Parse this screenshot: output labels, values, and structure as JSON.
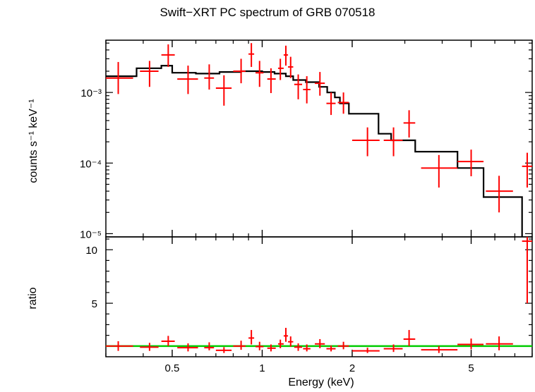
{
  "chart_data": [
    {
      "panel": "spectrum",
      "type": "scatter",
      "title": "Swift−XRT PC spectrum of GRB 070518",
      "xlabel": "",
      "ylabel": "counts s⁻¹ keV⁻¹",
      "xscale": "log",
      "yscale": "log",
      "xlim": [
        0.3,
        8.0
      ],
      "ylim": [
        9e-06,
        0.0055
      ],
      "y_ticks": [
        {
          "value": 0.001,
          "label": "10⁻³"
        },
        {
          "value": 0.0001,
          "label": "10⁻⁴"
        },
        {
          "value": 1e-05,
          "label": "10⁻⁵"
        }
      ],
      "data": [
        {
          "x": 0.33,
          "xlo": 0.3,
          "xhi": 0.37,
          "y": 0.0016,
          "ylo": 0.00095,
          "yhi": 0.0027
        },
        {
          "x": 0.42,
          "xlo": 0.39,
          "xhi": 0.45,
          "y": 0.002,
          "ylo": 0.0012,
          "yhi": 0.0028
        },
        {
          "x": 0.485,
          "xlo": 0.46,
          "xhi": 0.51,
          "y": 0.0034,
          "ylo": 0.0023,
          "yhi": 0.0048
        },
        {
          "x": 0.565,
          "xlo": 0.52,
          "xhi": 0.61,
          "y": 0.00155,
          "ylo": 0.00095,
          "yhi": 0.0024
        },
        {
          "x": 0.665,
          "xlo": 0.64,
          "xhi": 0.69,
          "y": 0.0016,
          "ylo": 0.0011,
          "yhi": 0.0025
        },
        {
          "x": 0.745,
          "xlo": 0.7,
          "xhi": 0.79,
          "y": 0.00115,
          "ylo": 0.00065,
          "yhi": 0.00175
        },
        {
          "x": 0.85,
          "xlo": 0.8,
          "xhi": 0.88,
          "y": 0.002,
          "ylo": 0.00135,
          "yhi": 0.003
        },
        {
          "x": 0.92,
          "xlo": 0.9,
          "xhi": 0.94,
          "y": 0.0035,
          "ylo": 0.0023,
          "yhi": 0.005
        },
        {
          "x": 0.98,
          "xlo": 0.95,
          "xhi": 1.01,
          "y": 0.0019,
          "ylo": 0.0012,
          "yhi": 0.0028
        },
        {
          "x": 1.07,
          "xlo": 1.04,
          "xhi": 1.11,
          "y": 0.00155,
          "ylo": 0.00098,
          "yhi": 0.0022
        },
        {
          "x": 1.15,
          "xlo": 1.13,
          "xhi": 1.18,
          "y": 0.0022,
          "ylo": 0.0015,
          "yhi": 0.003
        },
        {
          "x": 1.2,
          "xlo": 1.18,
          "xhi": 1.22,
          "y": 0.0034,
          "ylo": 0.0024,
          "yhi": 0.0046
        },
        {
          "x": 1.245,
          "xlo": 1.22,
          "xhi": 1.27,
          "y": 0.0023,
          "ylo": 0.0016,
          "yhi": 0.0032
        },
        {
          "x": 1.32,
          "xlo": 1.28,
          "xhi": 1.36,
          "y": 0.0013,
          "ylo": 0.0008,
          "yhi": 0.0018
        },
        {
          "x": 1.41,
          "xlo": 1.37,
          "xhi": 1.45,
          "y": 0.0011,
          "ylo": 0.0007,
          "yhi": 0.0017
        },
        {
          "x": 1.56,
          "xlo": 1.5,
          "xhi": 1.62,
          "y": 0.00135,
          "ylo": 0.0009,
          "yhi": 0.00195
        },
        {
          "x": 1.7,
          "xlo": 1.64,
          "xhi": 1.76,
          "y": 0.0007,
          "ylo": 0.00048,
          "yhi": 0.001
        },
        {
          "x": 1.87,
          "xlo": 1.79,
          "xhi": 1.95,
          "y": 0.00072,
          "ylo": 0.0005,
          "yhi": 0.001
        },
        {
          "x": 2.25,
          "xlo": 2.0,
          "xhi": 2.47,
          "y": 0.00021,
          "ylo": 0.000125,
          "yhi": 0.00032
        },
        {
          "x": 2.75,
          "xlo": 2.55,
          "xhi": 2.95,
          "y": 0.00021,
          "ylo": 0.000125,
          "yhi": 0.00032
        },
        {
          "x": 3.1,
          "xlo": 2.97,
          "xhi": 3.25,
          "y": 0.00037,
          "ylo": 0.00023,
          "yhi": 0.00056
        },
        {
          "x": 3.9,
          "xlo": 3.4,
          "xhi": 4.5,
          "y": 8.5e-05,
          "ylo": 4.5e-05,
          "yhi": 0.00013
        },
        {
          "x": 5.0,
          "xlo": 4.5,
          "xhi": 5.5,
          "y": 0.000105,
          "ylo": 6.5e-05,
          "yhi": 0.000155
        },
        {
          "x": 6.2,
          "xlo": 5.6,
          "xhi": 6.9,
          "y": 4e-05,
          "ylo": 2e-05,
          "yhi": 6.6e-05
        },
        {
          "x": 7.7,
          "xlo": 7.4,
          "xhi": 8.0,
          "y": 9e-05,
          "ylo": 4.5e-05,
          "yhi": 0.00014
        }
      ],
      "model_steps": [
        [
          0.3,
          0.0017
        ],
        [
          0.38,
          0.0022
        ],
        [
          0.46,
          0.0024
        ],
        [
          0.5,
          0.0019
        ],
        [
          0.6,
          0.00185
        ],
        [
          0.72,
          0.00195
        ],
        [
          0.85,
          0.002
        ],
        [
          1.0,
          0.00195
        ],
        [
          1.1,
          0.00185
        ],
        [
          1.2,
          0.0017
        ],
        [
          1.27,
          0.0015
        ],
        [
          1.4,
          0.0014
        ],
        [
          1.55,
          0.0012
        ],
        [
          1.65,
          0.001
        ],
        [
          1.75,
          0.00085
        ],
        [
          1.82,
          0.0007
        ],
        [
          1.95,
          0.0005
        ],
        [
          2.45,
          0.00026
        ],
        [
          2.7,
          0.00021
        ],
        [
          3.25,
          0.000145
        ],
        [
          4.5,
          8.5e-05
        ],
        [
          5.5,
          3.3e-05
        ],
        [
          6.9,
          3.3e-05
        ],
        [
          7.4,
          9e-06
        ]
      ],
      "series_colors": {
        "data": "#ff0000",
        "model": "#000000"
      }
    },
    {
      "panel": "ratio",
      "type": "scatter",
      "xlabel": "Energy (keV)",
      "ylabel": "ratio",
      "xscale": "log",
      "yscale": "linear",
      "xlim": [
        0.3,
        8.0
      ],
      "ylim": [
        0.0,
        11.2
      ],
      "y_ticks": [
        {
          "value": 5,
          "label": "5"
        },
        {
          "value": 10,
          "label": "10"
        }
      ],
      "x_ticks": [
        {
          "value": 0.5,
          "label": "0.5"
        },
        {
          "value": 1,
          "label": "1"
        },
        {
          "value": 2,
          "label": "2"
        },
        {
          "value": 5,
          "label": "5"
        }
      ],
      "reference_line": {
        "y": 1.0,
        "color": "#00cc00"
      },
      "data": [
        {
          "x": 0.33,
          "xlo": 0.3,
          "xhi": 0.37,
          "y": 1.0,
          "ylo": 0.55,
          "yhi": 1.45
        },
        {
          "x": 0.42,
          "xlo": 0.39,
          "xhi": 0.45,
          "y": 0.9,
          "ylo": 0.55,
          "yhi": 1.3
        },
        {
          "x": 0.485,
          "xlo": 0.46,
          "xhi": 0.51,
          "y": 1.45,
          "ylo": 1.0,
          "yhi": 1.95
        },
        {
          "x": 0.565,
          "xlo": 0.52,
          "xhi": 0.61,
          "y": 0.85,
          "ylo": 0.5,
          "yhi": 1.25
        },
        {
          "x": 0.665,
          "xlo": 0.64,
          "xhi": 0.69,
          "y": 0.85,
          "ylo": 0.6,
          "yhi": 1.35
        },
        {
          "x": 0.745,
          "xlo": 0.7,
          "xhi": 0.79,
          "y": 0.6,
          "ylo": 0.35,
          "yhi": 0.9
        },
        {
          "x": 0.85,
          "xlo": 0.8,
          "xhi": 0.88,
          "y": 1.0,
          "ylo": 0.65,
          "yhi": 1.5
        },
        {
          "x": 0.92,
          "xlo": 0.9,
          "xhi": 0.94,
          "y": 1.75,
          "ylo": 1.15,
          "yhi": 2.5
        },
        {
          "x": 0.98,
          "xlo": 0.95,
          "xhi": 1.01,
          "y": 0.95,
          "ylo": 0.6,
          "yhi": 1.4
        },
        {
          "x": 1.07,
          "xlo": 1.04,
          "xhi": 1.11,
          "y": 0.8,
          "ylo": 0.5,
          "yhi": 1.15
        },
        {
          "x": 1.15,
          "xlo": 1.13,
          "xhi": 1.18,
          "y": 1.2,
          "ylo": 0.8,
          "yhi": 1.6
        },
        {
          "x": 1.2,
          "xlo": 1.18,
          "xhi": 1.22,
          "y": 1.95,
          "ylo": 1.4,
          "yhi": 2.7
        },
        {
          "x": 1.245,
          "xlo": 1.22,
          "xhi": 1.27,
          "y": 1.4,
          "ylo": 0.95,
          "yhi": 1.9
        },
        {
          "x": 1.32,
          "xlo": 1.28,
          "xhi": 1.36,
          "y": 0.9,
          "ylo": 0.55,
          "yhi": 1.25
        },
        {
          "x": 1.41,
          "xlo": 1.37,
          "xhi": 1.45,
          "y": 0.75,
          "ylo": 0.5,
          "yhi": 1.15
        },
        {
          "x": 1.56,
          "xlo": 1.5,
          "xhi": 1.62,
          "y": 1.2,
          "ylo": 0.8,
          "yhi": 1.65
        },
        {
          "x": 1.7,
          "xlo": 1.64,
          "xhi": 1.76,
          "y": 0.75,
          "ylo": 0.5,
          "yhi": 1.05
        },
        {
          "x": 1.87,
          "xlo": 1.79,
          "xhi": 1.95,
          "y": 1.0,
          "ylo": 0.7,
          "yhi": 1.4
        },
        {
          "x": 2.25,
          "xlo": 2.0,
          "xhi": 2.47,
          "y": 0.55,
          "ylo": 0.35,
          "yhi": 0.85
        },
        {
          "x": 2.75,
          "xlo": 2.55,
          "xhi": 2.95,
          "y": 0.75,
          "ylo": 0.45,
          "yhi": 1.15
        },
        {
          "x": 3.1,
          "xlo": 2.97,
          "xhi": 3.25,
          "y": 1.65,
          "ylo": 1.0,
          "yhi": 2.5
        },
        {
          "x": 3.9,
          "xlo": 3.4,
          "xhi": 4.5,
          "y": 0.65,
          "ylo": 0.35,
          "yhi": 1.0
        },
        {
          "x": 5.0,
          "xlo": 4.5,
          "xhi": 5.5,
          "y": 1.15,
          "ylo": 0.7,
          "yhi": 1.7
        },
        {
          "x": 6.2,
          "xlo": 5.6,
          "xhi": 6.9,
          "y": 1.2,
          "ylo": 0.6,
          "yhi": 1.9
        },
        {
          "x": 7.7,
          "xlo": 7.4,
          "xhi": 8.0,
          "y": 10.8,
          "ylo": 5.0,
          "yhi": 11.2
        }
      ]
    }
  ],
  "labels": {
    "title": "Swift−XRT PC spectrum of GRB 070518",
    "ylabel_top": "counts s⁻¹ keV⁻¹",
    "ylabel_bottom": "ratio",
    "xlabel": "Energy (keV)"
  }
}
